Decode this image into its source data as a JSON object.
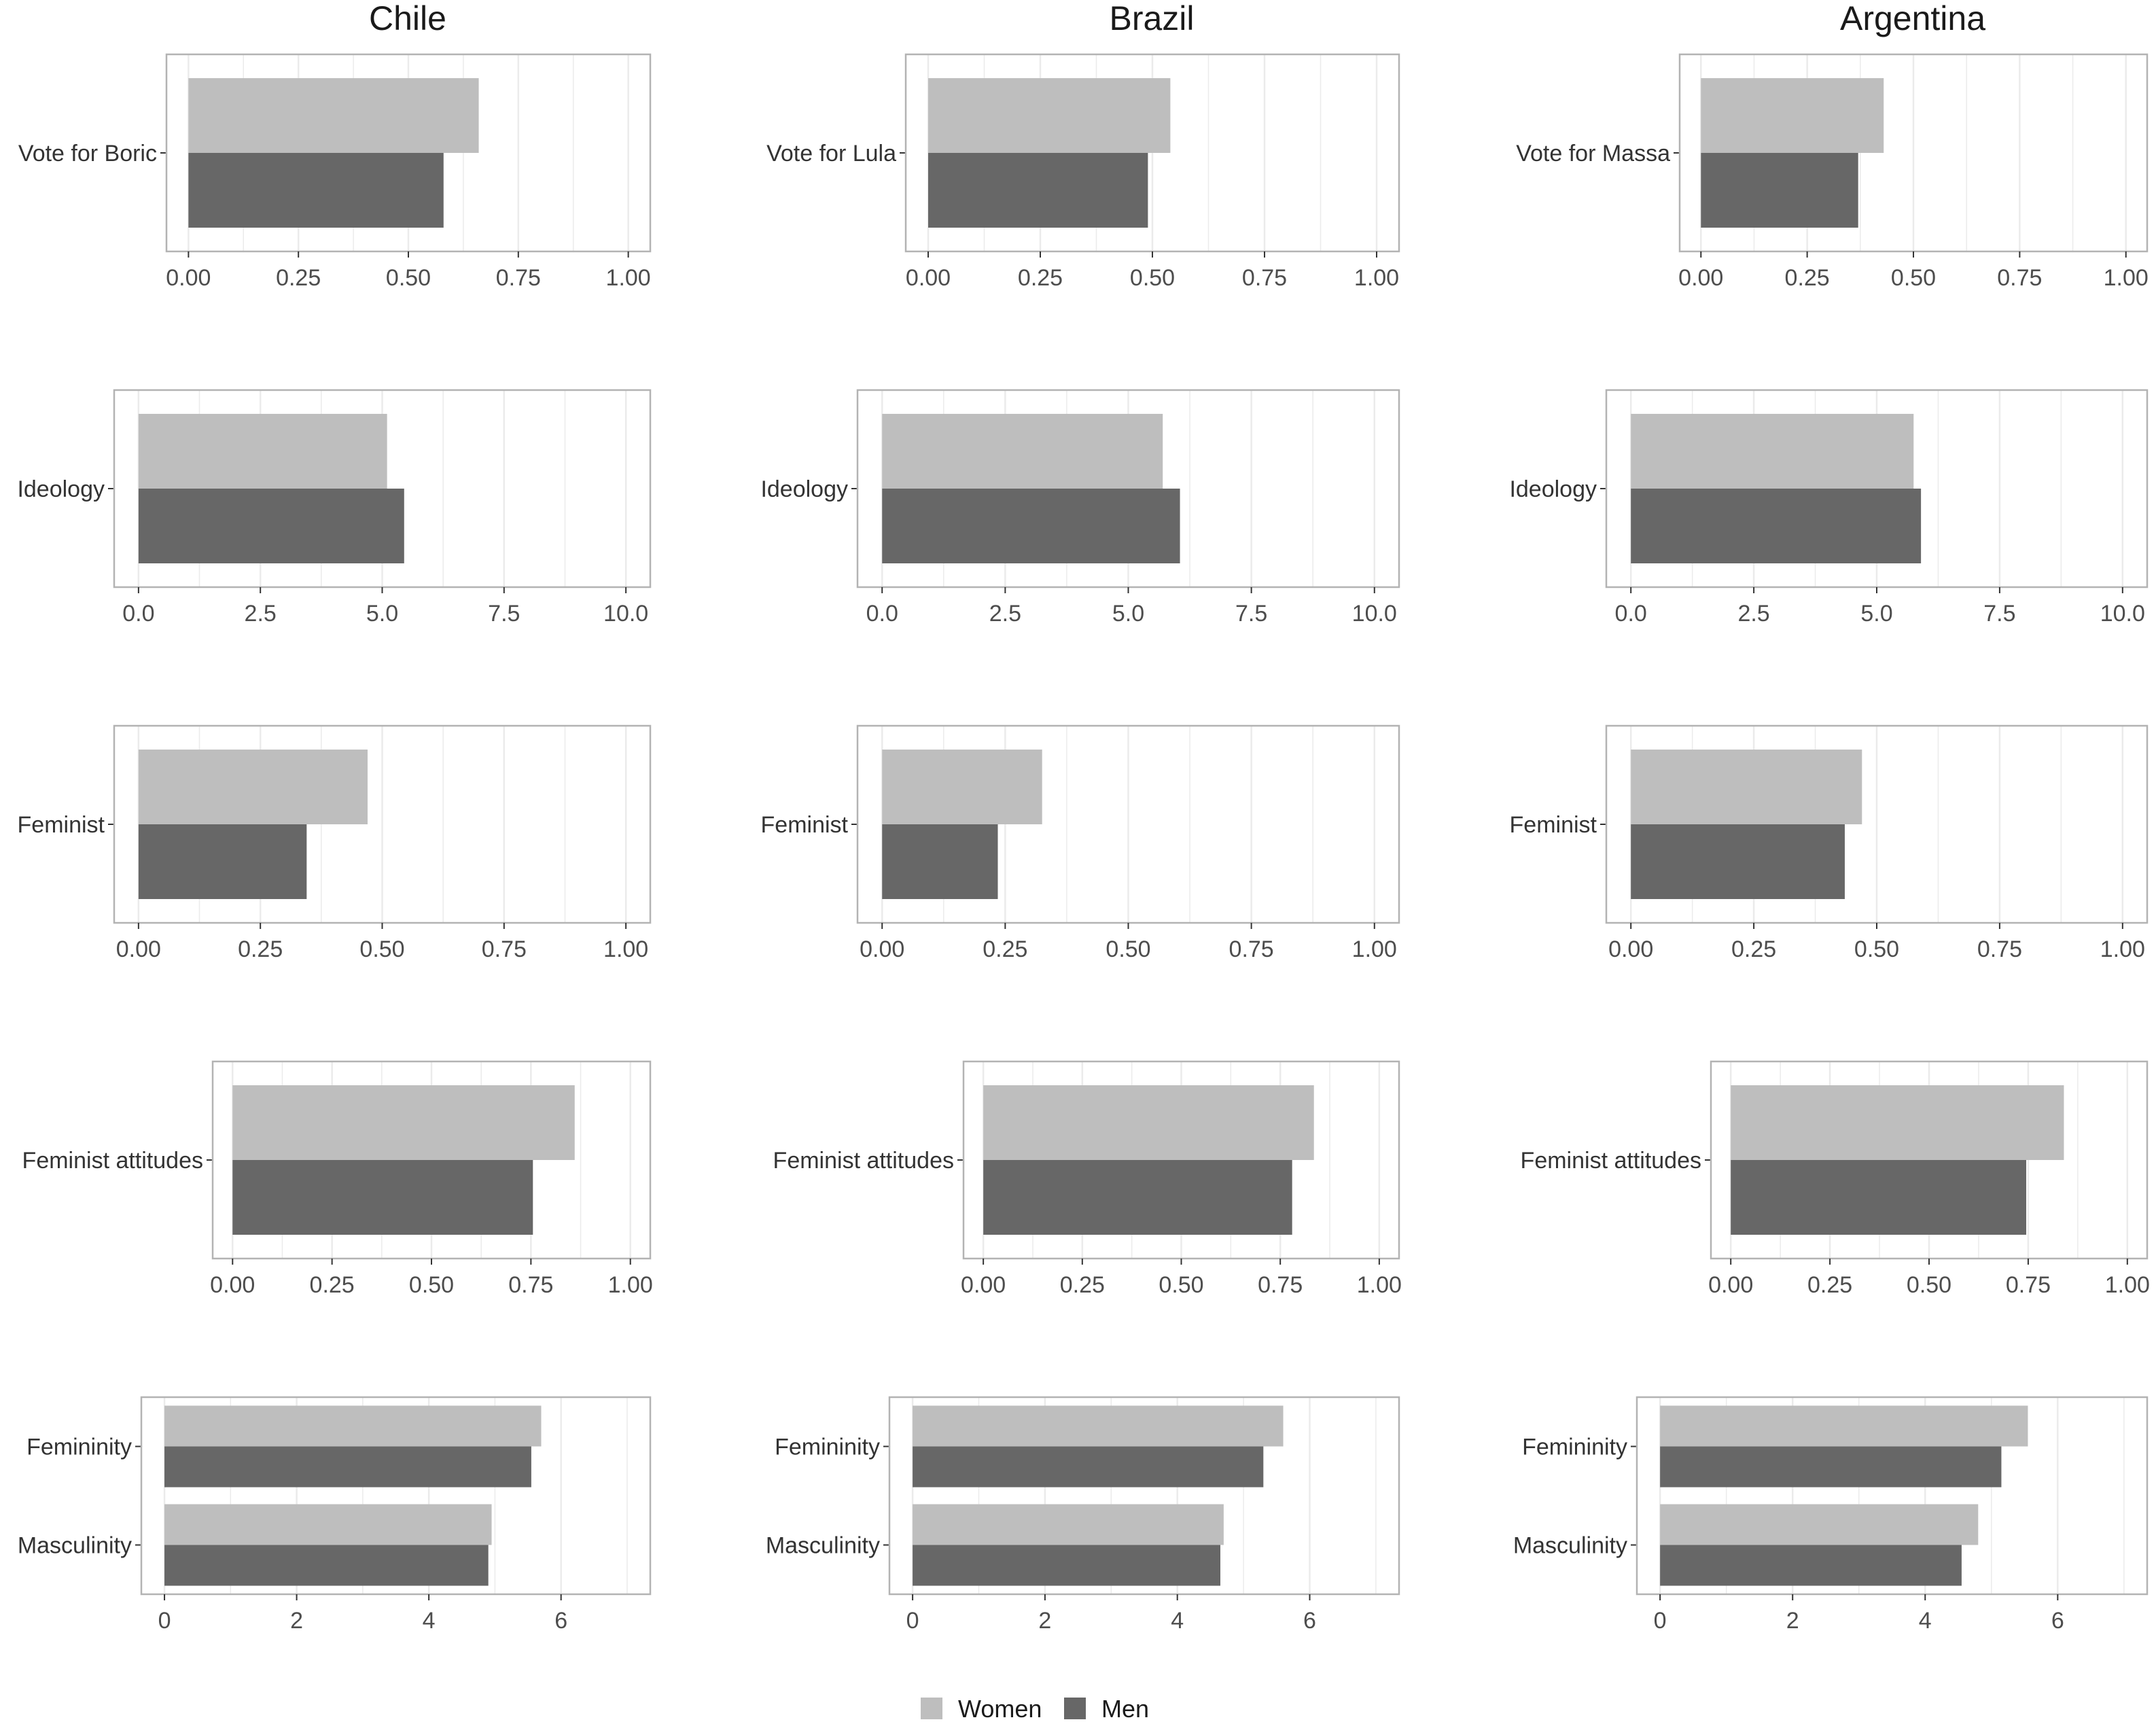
{
  "chart_data": {
    "type": "bar",
    "orientation": "horizontal",
    "columns": [
      "Chile",
      "Brazil",
      "Argentina"
    ],
    "colors": {
      "Women": "#bebebe",
      "Men": "#676767",
      "grid": "#ebebeb",
      "border": "#b3b3b3"
    },
    "legend": {
      "placement": "bottom",
      "entries": [
        "Women",
        "Men"
      ]
    },
    "rows": [
      {
        "ticks": [
          0,
          0.25,
          0.5,
          0.75,
          1.0
        ],
        "tick_labels": [
          "0.00",
          "0.25",
          "0.50",
          "0.75",
          "1.00"
        ],
        "xlim": [
          -0.05,
          1.05
        ],
        "panels": [
          {
            "country": "Chile",
            "categories": [
              "Vote for Boric"
            ],
            "series": [
              {
                "name": "Women",
                "values": [
                  0.66
                ]
              },
              {
                "name": "Men",
                "values": [
                  0.58
                ]
              }
            ]
          },
          {
            "country": "Brazil",
            "categories": [
              "Vote for Lula"
            ],
            "series": [
              {
                "name": "Women",
                "values": [
                  0.54
                ]
              },
              {
                "name": "Men",
                "values": [
                  0.49
                ]
              }
            ]
          },
          {
            "country": "Argentina",
            "categories": [
              "Vote for Massa"
            ],
            "series": [
              {
                "name": "Women",
                "values": [
                  0.43
                ]
              },
              {
                "name": "Men",
                "values": [
                  0.37
                ]
              }
            ]
          }
        ]
      },
      {
        "ticks": [
          0,
          2.5,
          5,
          7.5,
          10
        ],
        "tick_labels": [
          "0.0",
          "2.5",
          "5.0",
          "7.5",
          "10.0"
        ],
        "xlim": [
          -0.5,
          10.5
        ],
        "panels": [
          {
            "country": "Chile",
            "categories": [
              "Ideology"
            ],
            "series": [
              {
                "name": "Women",
                "values": [
                  5.1
                ]
              },
              {
                "name": "Men",
                "values": [
                  5.45
                ]
              }
            ]
          },
          {
            "country": "Brazil",
            "categories": [
              "Ideology"
            ],
            "series": [
              {
                "name": "Women",
                "values": [
                  5.7
                ]
              },
              {
                "name": "Men",
                "values": [
                  6.05
                ]
              }
            ]
          },
          {
            "country": "Argentina",
            "categories": [
              "Ideology"
            ],
            "series": [
              {
                "name": "Women",
                "values": [
                  5.75
                ]
              },
              {
                "name": "Men",
                "values": [
                  5.9
                ]
              }
            ]
          }
        ]
      },
      {
        "ticks": [
          0,
          0.25,
          0.5,
          0.75,
          1.0
        ],
        "tick_labels": [
          "0.00",
          "0.25",
          "0.50",
          "0.75",
          "1.00"
        ],
        "xlim": [
          -0.05,
          1.05
        ],
        "panels": [
          {
            "country": "Chile",
            "categories": [
              "Feminist"
            ],
            "series": [
              {
                "name": "Women",
                "values": [
                  0.47
                ]
              },
              {
                "name": "Men",
                "values": [
                  0.345
                ]
              }
            ]
          },
          {
            "country": "Brazil",
            "categories": [
              "Feminist"
            ],
            "series": [
              {
                "name": "Women",
                "values": [
                  0.325
                ]
              },
              {
                "name": "Men",
                "values": [
                  0.235
                ]
              }
            ]
          },
          {
            "country": "Argentina",
            "categories": [
              "Feminist"
            ],
            "series": [
              {
                "name": "Women",
                "values": [
                  0.47
                ]
              },
              {
                "name": "Men",
                "values": [
                  0.435
                ]
              }
            ]
          }
        ]
      },
      {
        "ticks": [
          0,
          0.25,
          0.5,
          0.75,
          1.0
        ],
        "tick_labels": [
          "0.00",
          "0.25",
          "0.50",
          "0.75",
          "1.00"
        ],
        "xlim": [
          -0.05,
          1.05
        ],
        "panels": [
          {
            "country": "Chile",
            "categories": [
              "Feminist attitudes"
            ],
            "series": [
              {
                "name": "Women",
                "values": [
                  0.86
                ]
              },
              {
                "name": "Men",
                "values": [
                  0.755
                ]
              }
            ]
          },
          {
            "country": "Brazil",
            "categories": [
              "Feminist attitudes"
            ],
            "series": [
              {
                "name": "Women",
                "values": [
                  0.835
                ]
              },
              {
                "name": "Men",
                "values": [
                  0.78
                ]
              }
            ]
          },
          {
            "country": "Argentina",
            "categories": [
              "Feminist attitudes"
            ],
            "series": [
              {
                "name": "Women",
                "values": [
                  0.84
                ]
              },
              {
                "name": "Men",
                "values": [
                  0.745
                ]
              }
            ]
          }
        ]
      },
      {
        "ticks": [
          0,
          2,
          4,
          6
        ],
        "tick_labels": [
          "0",
          "2",
          "4",
          "6"
        ],
        "xlim": [
          -0.35,
          7.35
        ],
        "panels": [
          {
            "country": "Chile",
            "categories": [
              "Femininity",
              "Masculinity"
            ],
            "series": [
              {
                "name": "Women",
                "values": [
                  5.7,
                  4.95
                ]
              },
              {
                "name": "Men",
                "values": [
                  5.55,
                  4.9
                ]
              }
            ]
          },
          {
            "country": "Brazil",
            "categories": [
              "Femininity",
              "Masculinity"
            ],
            "series": [
              {
                "name": "Women",
                "values": [
                  5.6,
                  4.7
                ]
              },
              {
                "name": "Men",
                "values": [
                  5.3,
                  4.65
                ]
              }
            ]
          },
          {
            "country": "Argentina",
            "categories": [
              "Femininity",
              "Masculinity"
            ],
            "series": [
              {
                "name": "Women",
                "values": [
                  5.55,
                  4.8
                ]
              },
              {
                "name": "Men",
                "values": [
                  5.15,
                  4.55
                ]
              }
            ]
          }
        ]
      }
    ]
  }
}
